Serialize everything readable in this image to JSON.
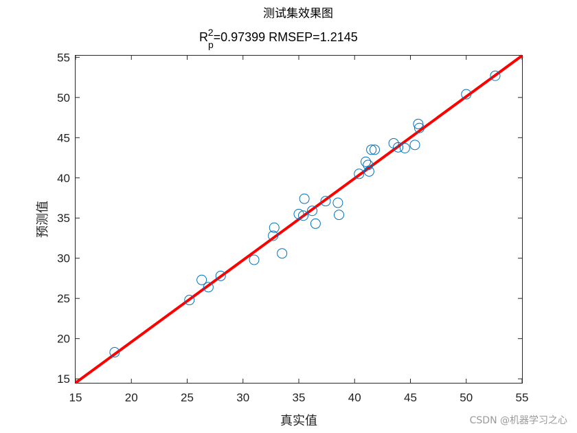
{
  "chart_data": {
    "type": "scatter",
    "title": "测试集效果图",
    "subtitle": {
      "r_base": "R",
      "r_sub": "p",
      "r_sup": "2",
      "text": "=0.97399  RMSEP=1.2145"
    },
    "xlabel": "真实值",
    "ylabel": "预测值",
    "xlim": [
      15,
      55
    ],
    "ylim": [
      14.5,
      55.2
    ],
    "xticks": [
      "15",
      "20",
      "25",
      "30",
      "35",
      "40",
      "45",
      "50",
      "55"
    ],
    "yticks": [
      "15",
      "20",
      "25",
      "30",
      "35",
      "40",
      "45",
      "50",
      "55"
    ],
    "grid": false,
    "marker_color": "#0072BD",
    "line_color": "#FF0000",
    "fit_line": {
      "x": [
        15,
        55
      ],
      "y": [
        14.5,
        55.2
      ]
    },
    "points": [
      {
        "x": 18.5,
        "y": 18.3
      },
      {
        "x": 25.2,
        "y": 24.8
      },
      {
        "x": 26.3,
        "y": 27.3
      },
      {
        "x": 26.9,
        "y": 26.4
      },
      {
        "x": 28.0,
        "y": 27.8
      },
      {
        "x": 31.0,
        "y": 29.8
      },
      {
        "x": 32.8,
        "y": 33.8
      },
      {
        "x": 32.7,
        "y": 32.8
      },
      {
        "x": 33.5,
        "y": 30.6
      },
      {
        "x": 35.0,
        "y": 35.5
      },
      {
        "x": 35.4,
        "y": 35.3
      },
      {
        "x": 35.5,
        "y": 37.4
      },
      {
        "x": 36.2,
        "y": 35.9
      },
      {
        "x": 36.5,
        "y": 34.3
      },
      {
        "x": 37.4,
        "y": 37.1
      },
      {
        "x": 38.5,
        "y": 36.9
      },
      {
        "x": 38.6,
        "y": 35.4
      },
      {
        "x": 40.4,
        "y": 40.5
      },
      {
        "x": 41.0,
        "y": 42.0
      },
      {
        "x": 41.2,
        "y": 41.6
      },
      {
        "x": 41.3,
        "y": 40.8
      },
      {
        "x": 41.5,
        "y": 43.5
      },
      {
        "x": 41.8,
        "y": 43.5
      },
      {
        "x": 43.5,
        "y": 44.3
      },
      {
        "x": 43.9,
        "y": 43.8
      },
      {
        "x": 44.5,
        "y": 43.7
      },
      {
        "x": 45.4,
        "y": 44.1
      },
      {
        "x": 45.7,
        "y": 46.7
      },
      {
        "x": 45.8,
        "y": 46.2
      },
      {
        "x": 50.0,
        "y": 50.4
      },
      {
        "x": 52.6,
        "y": 52.7
      }
    ]
  },
  "watermark": "CSDN @机器学习之心"
}
